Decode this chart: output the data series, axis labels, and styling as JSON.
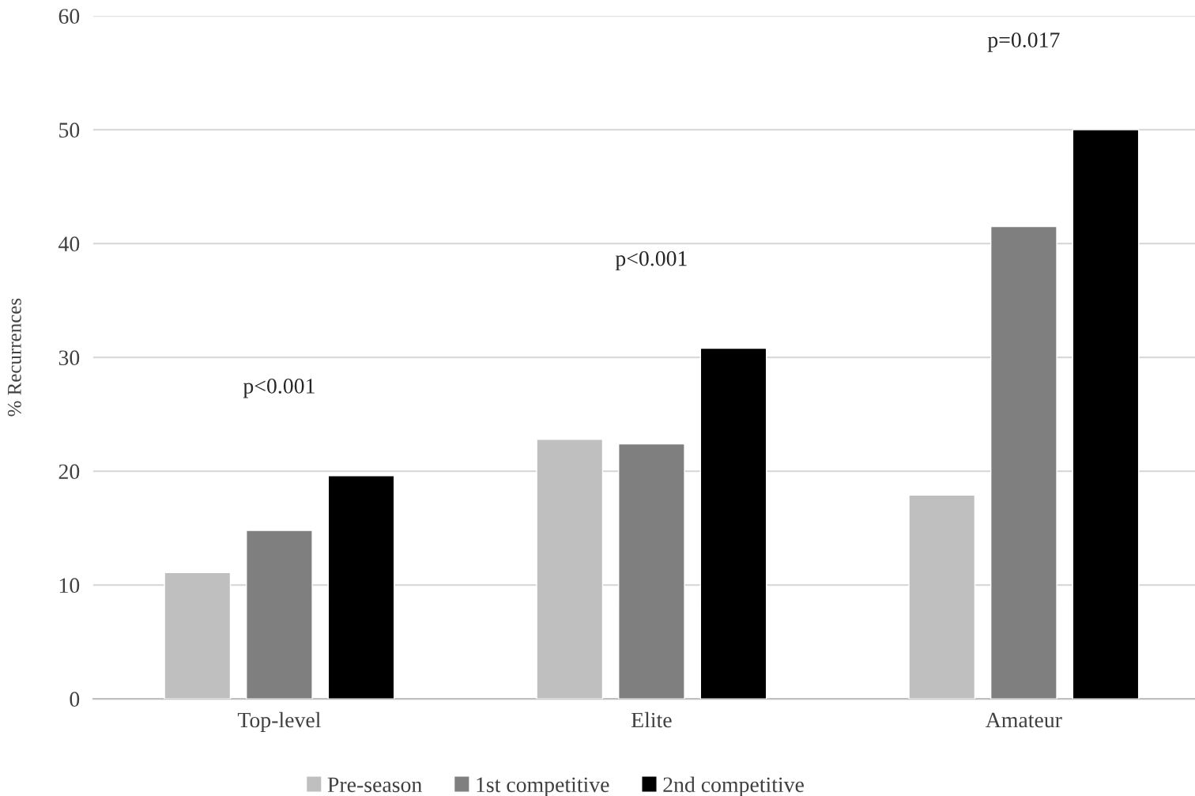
{
  "chart_data": {
    "type": "bar",
    "ylabel": "% Recurrences",
    "categories": [
      "Top-level",
      "Elite",
      "Amateur"
    ],
    "series": [
      {
        "name": "Pre-season",
        "color": "#bfbfbf",
        "values": [
          11.1,
          22.8,
          17.9
        ]
      },
      {
        "name": "1st competitive",
        "color": "#7f7f7f",
        "values": [
          14.8,
          22.4,
          41.5
        ]
      },
      {
        "name": "2nd competitive",
        "color": "#000000",
        "values": [
          19.6,
          30.8,
          50
        ]
      }
    ],
    "ylim": [
      0,
      60
    ],
    "yticks": [
      0,
      10,
      20,
      30,
      40,
      50,
      60
    ],
    "grid": "y",
    "legend": "bottom",
    "annotations": [
      "p<0.001",
      "p<0.001",
      "p=0.017"
    ]
  }
}
